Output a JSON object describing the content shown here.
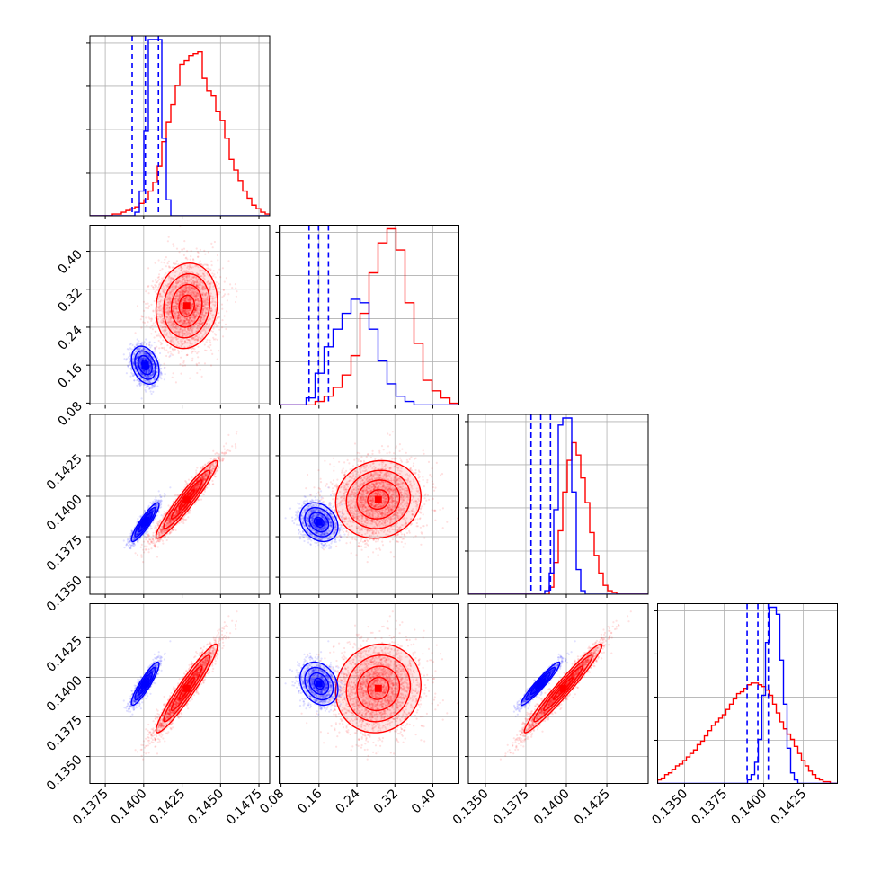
{
  "chart_data": {
    "type": "corner",
    "title": "",
    "grid": true,
    "legend": "none",
    "parameters": [
      {
        "key": "p0",
        "label": "",
        "range": [
          0.1365,
          0.1482
        ],
        "ticks": [
          "0.1375",
          "0.1400",
          "0.1425",
          "0.1450",
          "0.1475"
        ]
      },
      {
        "key": "p1",
        "label": "",
        "range": [
          0.076,
          0.455
        ],
        "ticks": [
          "0.08",
          "0.16",
          "0.24",
          "0.32",
          "0.40"
        ]
      },
      {
        "key": "p2",
        "label": "",
        "range": [
          0.13395,
          0.14505
        ],
        "ticks": [
          "0.1350",
          "0.1375",
          "0.1400",
          "0.1425"
        ]
      },
      {
        "key": "p3",
        "label": "",
        "range": [
          0.1333,
          0.14465
        ],
        "ticks": [
          "0.1350",
          "0.1375",
          "0.1400",
          "0.1425"
        ]
      }
    ],
    "series": [
      {
        "color": "#0000ff",
        "mean": [
          0.1401,
          0.16,
          0.1384,
          0.1396
        ],
        "std": [
          0.00045,
          0.02,
          0.0006,
          0.00068
        ],
        "corr": [
          [
            1.0,
            -0.3,
            0.9,
            0.9
          ],
          [
            -0.3,
            1.0,
            -0.25,
            -0.25
          ],
          [
            0.9,
            -0.25,
            1.0,
            0.95
          ],
          [
            0.9,
            -0.25,
            0.95,
            1.0
          ]
        ],
        "quantile_lines": [
          [
            0.13925,
            0.14011,
            0.14096
          ],
          [
            0.139,
            0.159,
            0.18
          ],
          [
            0.13782,
            0.13842,
            0.13902
          ],
          [
            0.13895,
            0.13963,
            0.14029
          ]
        ],
        "histograms": [
          [
            0,
            0,
            0,
            0,
            0,
            0,
            0,
            0,
            0,
            0,
            2,
            14,
            48,
            100,
            100,
            100,
            44,
            9,
            0,
            0,
            0,
            0,
            0,
            0,
            0,
            0,
            0,
            0,
            0,
            0,
            0,
            0,
            0,
            0,
            0,
            0,
            0,
            0,
            0,
            0
          ],
          [
            0,
            0,
            0,
            4,
            18,
            33,
            43,
            52,
            60,
            58,
            43,
            25,
            12,
            5,
            2,
            0,
            0,
            0,
            0,
            0
          ],
          [
            0,
            0,
            0,
            0,
            0,
            0,
            0,
            0,
            0,
            0,
            0,
            0,
            0,
            0,
            0,
            0,
            0,
            2,
            12,
            48,
            96,
            100,
            100,
            58,
            14,
            2,
            0,
            0,
            0,
            0,
            0,
            0,
            0,
            0,
            0,
            0,
            0,
            0,
            0,
            0
          ],
          [
            0,
            0,
            0,
            0,
            0,
            0,
            0,
            0,
            0,
            0,
            0,
            0,
            0,
            0,
            0,
            0,
            0,
            0,
            0,
            0,
            0,
            0,
            0,
            0,
            0,
            2,
            5,
            12,
            25,
            50,
            80,
            100,
            100,
            96,
            70,
            45,
            20,
            6,
            2,
            0,
            0,
            0,
            0,
            0,
            0,
            0,
            0,
            0,
            0,
            0
          ]
        ]
      },
      {
        "color": "#ff0000",
        "mean": [
          0.1428,
          0.285,
          0.1398,
          0.1393
        ],
        "std": [
          0.001,
          0.045,
          0.0012,
          0.0014
        ],
        "corr": [
          [
            1.0,
            0.1,
            0.95,
            0.95
          ],
          [
            0.1,
            1.0,
            0.08,
            0.08
          ],
          [
            0.95,
            0.08,
            1.0,
            0.97
          ],
          [
            0.95,
            0.08,
            0.97,
            1.0
          ]
        ],
        "quantile_lines": [],
        "histograms": [
          [
            0,
            0,
            0,
            0,
            0,
            1,
            1,
            2,
            3,
            4,
            5,
            7,
            9,
            14,
            19,
            28,
            42,
            53,
            63,
            74,
            86,
            88,
            91,
            92,
            93,
            78,
            71,
            68,
            59,
            54,
            44,
            32,
            26,
            20,
            14,
            10,
            6,
            4,
            2,
            1
          ],
          [
            0,
            0,
            0,
            0,
            2,
            5,
            10,
            17,
            28,
            52,
            75,
            92,
            100,
            88,
            58,
            35,
            14,
            8,
            4,
            1
          ],
          [
            0,
            0,
            0,
            0,
            0,
            0,
            0,
            0,
            0,
            0,
            0,
            0,
            0,
            0,
            0,
            0,
            0,
            0,
            4,
            18,
            36,
            58,
            76,
            86,
            79,
            66,
            52,
            35,
            22,
            12,
            5,
            2,
            1,
            0,
            0,
            0,
            0,
            0,
            0,
            0
          ],
          [
            2,
            3,
            5,
            6,
            8,
            10,
            11,
            13,
            15,
            17,
            19,
            22,
            24,
            27,
            30,
            33,
            35,
            37,
            39,
            42,
            45,
            48,
            51,
            52,
            54,
            56,
            57,
            57,
            56,
            55,
            53,
            50,
            45,
            40,
            35,
            31,
            28,
            25,
            21,
            17,
            13,
            10,
            7,
            5,
            3,
            2,
            1,
            1,
            0,
            0
          ]
        ]
      }
    ]
  }
}
